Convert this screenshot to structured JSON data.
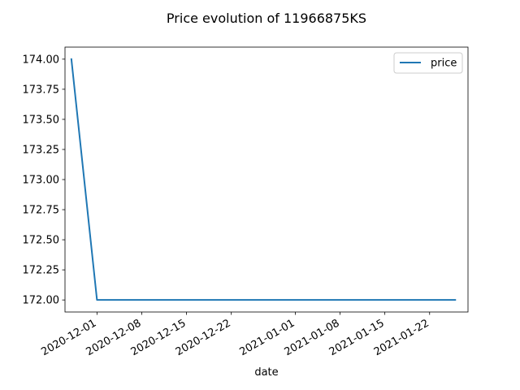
{
  "chart_data": {
    "type": "line",
    "title": "Price evolution of 11966875KS",
    "xlabel": "date",
    "ylabel": "",
    "xlim": [
      "2020-11-26",
      "2021-01-28"
    ],
    "ylim": [
      171.9,
      174.1
    ],
    "x_ticks": [
      "2020-12-01",
      "2020-12-08",
      "2020-12-15",
      "2020-12-22",
      "2021-01-01",
      "2021-01-08",
      "2021-01-15",
      "2021-01-22"
    ],
    "y_ticks": [
      "172.00",
      "172.25",
      "172.50",
      "172.75",
      "173.00",
      "173.25",
      "173.50",
      "173.75",
      "174.00"
    ],
    "grid": false,
    "legend": {
      "position": "top-right"
    },
    "series": [
      {
        "name": "price",
        "color": "#1f77b4",
        "x": [
          "2020-11-27",
          "2020-12-01",
          "2021-01-26"
        ],
        "y": [
          174.0,
          172.0,
          172.0
        ]
      }
    ]
  }
}
